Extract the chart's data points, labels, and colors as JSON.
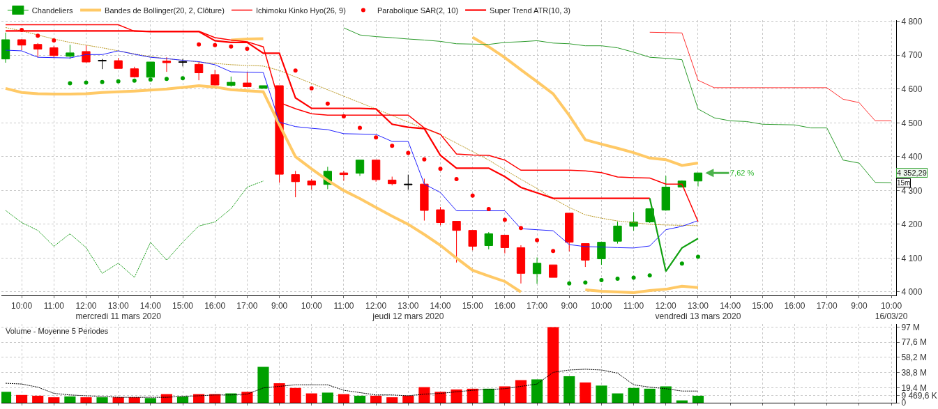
{
  "chart_data": [
    {
      "type": "candlestick",
      "categories": [
        null,
        "10:00",
        null,
        "11:00",
        null,
        "12:00",
        null,
        "13:00\nmercredi 11 mars 2020",
        null,
        "14:00",
        null,
        "15:00",
        null,
        "16:00",
        null,
        "17:00",
        null,
        "9:00",
        null,
        "10:00",
        null,
        "11:00",
        null,
        "12:00",
        null,
        "13:00\njeudi 12 mars 2020",
        null,
        "14:00",
        null,
        "15:00",
        null,
        "16:00",
        null,
        "17:00",
        null,
        "9:00",
        null,
        "10:00",
        null,
        "11:00",
        null,
        "12:00",
        null,
        "13:00\nvendredi 13 mars 2020",
        null,
        "14:00",
        null,
        "15:00",
        null,
        "16:00",
        null,
        "17:00",
        null,
        "9:00",
        null,
        "10:00\n16/03/20"
      ],
      "ylim": [
        3989,
        4804
      ],
      "yticks": [
        {
          "value": 4000,
          "label": "4 000"
        },
        {
          "value": 4100,
          "label": "4 100"
        },
        {
          "value": 4200,
          "label": "4 200"
        },
        {
          "value": 4300,
          "label": "4 300"
        },
        {
          "value": 4400,
          "label": "4 400"
        },
        {
          "value": 4500,
          "label": "4 500"
        },
        {
          "value": 4600,
          "label": "4 600"
        },
        {
          "value": 4700,
          "label": "4 700"
        },
        {
          "value": 4800,
          "label": "4 800"
        }
      ],
      "grid": true,
      "legend": "top left",
      "series": [
        {
          "name": "Chandeliers",
          "ohlc": [
            [
              4689,
              4767,
              4678,
              4746
            ],
            [
              4746,
              4748,
              4715,
              4730
            ],
            [
              4732,
              4736,
              4694,
              4718
            ],
            [
              4722,
              4728,
              4692,
              4699
            ],
            [
              4697,
              4731,
              4689,
              4707
            ],
            [
              4711,
              4730,
              4678,
              4680
            ],
            [
              4685,
              4689,
              4659,
              4683
            ],
            [
              4684,
              4692,
              4661,
              4661
            ],
            [
              4660,
              4666,
              4634,
              4636
            ],
            [
              4635,
              4680,
              4634,
              4680
            ],
            [
              4683,
              4694,
              4651,
              4678
            ],
            [
              4681,
              4689,
              4667,
              4679
            ],
            [
              4673,
              4681,
              4626,
              4648
            ],
            [
              4643,
              4657,
              4611,
              4612
            ],
            [
              4611,
              4637,
              4607,
              4620
            ],
            [
              4618,
              4650,
              4607,
              4607
            ],
            [
              4602,
              4610,
              4602,
              4610
            ],
            [
              4610,
              4610,
              4323,
              4348
            ],
            [
              4347,
              4358,
              4280,
              4326
            ],
            [
              4328,
              4334,
              4302,
              4316
            ],
            [
              4318,
              4370,
              4304,
              4357
            ],
            [
              4352,
              4358,
              4329,
              4347
            ],
            [
              4351,
              4390,
              4343,
              4390
            ],
            [
              4390,
              4390,
              4326,
              4332
            ],
            [
              4331,
              4341,
              4315,
              4320
            ],
            [
              4319,
              4347,
              4302,
              4317
            ],
            [
              4319,
              4335,
              4211,
              4241
            ],
            [
              4243,
              4251,
              4197,
              4205
            ],
            [
              4209,
              4209,
              4087,
              4182
            ],
            [
              4182,
              4182,
              4123,
              4135
            ],
            [
              4137,
              4177,
              4126,
              4172
            ],
            [
              4168,
              4168,
              4114,
              4131
            ],
            [
              4131,
              4138,
              4025,
              4055
            ],
            [
              4054,
              4102,
              4024,
              4085
            ],
            [
              4080,
              4080,
              4043,
              4043
            ],
            [
              4233,
              4233,
              4120,
              4147
            ],
            [
              4143,
              4143,
              4074,
              4094
            ],
            [
              4098,
              4149,
              4080,
              4147
            ],
            [
              4150,
              4208,
              4143,
              4195
            ],
            [
              4194,
              4236,
              4181,
              4207
            ],
            [
              4207,
              4246,
              4204,
              4246
            ],
            [
              4242,
              4343,
              4240,
              4310
            ],
            [
              4310,
              4330,
              4310,
              4328
            ],
            [
              4328,
              4352,
              4312,
              4352
            ],
            null,
            null,
            null,
            null,
            null,
            null,
            null,
            null,
            null,
            null,
            null,
            null
          ],
          "colors": [
            "#00a000",
            "#ff0000",
            "#ff0000",
            "#ff0000",
            "#00a000",
            "#ff0000",
            "#000000",
            "#ff0000",
            "#ff0000",
            "#00a000",
            "#ff0000",
            "#000000",
            "#ff0000",
            "#ff0000",
            "#00a000",
            "#ff0000",
            "#00a000",
            "#ff0000",
            "#ff0000",
            "#ff0000",
            "#00a000",
            "#ff0000",
            "#00a000",
            "#ff0000",
            "#ff0000",
            "#000000",
            "#ff0000",
            "#ff0000",
            "#ff0000",
            "#ff0000",
            "#00a000",
            "#ff0000",
            "#ff0000",
            "#00a000",
            "#ff0000",
            "#ff0000",
            "#ff0000",
            "#00a000",
            "#00a000",
            "#00a000",
            "#00a000",
            "#00a000",
            "#00a000",
            "#00a000",
            null,
            null,
            null,
            null,
            null,
            null,
            null,
            null,
            null,
            null,
            null,
            null
          ]
        },
        {
          "type": "line",
          "name": "Bandes de Bollinger(20, 2, Clôture)",
          "color": "#ffc966",
          "values": [
            null,
            null,
            null,
            null,
            null,
            null,
            null,
            null,
            null,
            null,
            null,
            null,
            null,
            null,
            4745,
            4748,
            4749,
            null,
            null,
            null,
            null,
            null,
            null,
            null,
            null,
            null,
            null,
            null,
            null,
            4753,
            4725,
            4693,
            4657,
            4622,
            4586,
            4522,
            4450,
            4437,
            4425,
            4412,
            4396,
            4391,
            4374,
            4381,
            null,
            null,
            null,
            null,
            null,
            null,
            null,
            null,
            null,
            null,
            null,
            null
          ]
        },
        {
          "type": "line",
          "color": "#ffc966",
          "values": [
            4602,
            4590,
            4586,
            4585,
            4585,
            4586,
            4590,
            4592,
            4594,
            4597,
            4600,
            4605,
            4610,
            4606,
            4598,
            4595,
            4592,
            4495,
            4400,
            4364,
            4330,
            4300,
            4276,
            4250,
            4224,
            4200,
            4170,
            4138,
            4100,
            4064,
            4047,
            4031,
            4000,
            null,
            null,
            null,
            4006,
            4002,
            4000,
            3998,
            4004,
            4008,
            4017,
            4013,
            null,
            null,
            null,
            null,
            null,
            null,
            null,
            null,
            null,
            null,
            null,
            null
          ]
        },
        {
          "type": "line",
          "color": "#b8961e",
          "line_style": "dotted",
          "values": [
            4782,
            4772,
            4760,
            4748,
            4738,
            4730,
            4722,
            4713,
            4704,
            4696,
            4690,
            4685,
            4680,
            4676,
            4672,
            4670,
            4668,
            4655,
            4636,
            4617,
            4598,
            4579,
            4560,
            4541,
            4522,
            4502,
            4483,
            4465,
            4440,
            4415,
            4390,
            4361,
            4333,
            4306,
            4276,
            4250,
            4228,
            4218,
            4210,
            4205,
            4200,
            4198,
            4197,
            4196,
            null,
            null,
            null,
            null,
            null,
            null,
            null,
            null,
            null,
            null,
            null,
            null
          ]
        },
        {
          "type": "line",
          "color": "#2020ff",
          "values": [
            4715,
            4713,
            4694,
            4693,
            4692,
            4702,
            4702,
            4713,
            4703,
            4694,
            4690,
            4685,
            4681,
            4672,
            4651,
            4650,
            4649,
            4502,
            4489,
            4484,
            4480,
            4468,
            4467,
            4466,
            4445,
            4445,
            4319,
            4294,
            4240,
            4240,
            4240,
            4240,
            4187,
            4184,
            4181,
            4140,
            4134,
            4133,
            4131,
            4130,
            4136,
            4184,
            4194,
            4211,
            null,
            null,
            null,
            null,
            null,
            null,
            null,
            null,
            null,
            null,
            null,
            null
          ]
        },
        {
          "type": "line",
          "name": "Ichimoku Kinko Hyo(26, 9)",
          "color": "#ff0000",
          "values": [
            4790,
            4790,
            4790,
            4790,
            4790,
            4790,
            4790,
            4790,
            4771,
            4771,
            4771,
            4771,
            4771,
            4752,
            4745,
            4740,
            4725,
            4560,
            4542,
            4527,
            4523,
            4523,
            4523,
            4523,
            4523,
            4523,
            4485,
            4466,
            4408,
            4405,
            4404,
            4390,
            4360,
            4360,
            4360,
            4360,
            4358,
            4353,
            4340,
            4338,
            4337,
            4319,
            4319,
            4208,
            null,
            null,
            null,
            null,
            null,
            null,
            null,
            null,
            null,
            null,
            null,
            null
          ]
        },
        {
          "type": "line",
          "color": "#ff3030",
          "values": [
            null,
            null,
            null,
            null,
            null,
            null,
            null,
            null,
            null,
            null,
            null,
            null,
            null,
            null,
            null,
            null,
            null,
            null,
            null,
            null,
            null,
            null,
            null,
            null,
            null,
            null,
            null,
            null,
            null,
            null,
            null,
            null,
            null,
            null,
            null,
            null,
            null,
            null,
            null,
            null,
            4768,
            4767,
            4766,
            4626,
            4604,
            4604,
            4604,
            4604,
            4604,
            4604,
            4604,
            4604,
            4570,
            4560,
            4506,
            4506
          ]
        },
        {
          "type": "line",
          "color": "#2a9a2a",
          "values": [
            null,
            null,
            null,
            null,
            null,
            null,
            null,
            null,
            null,
            null,
            null,
            null,
            null,
            null,
            null,
            null,
            null,
            null,
            null,
            null,
            null,
            4781,
            4760,
            4755,
            4752,
            4748,
            4745,
            4741,
            4734,
            4733,
            4732,
            4738,
            4740,
            4743,
            4736,
            4734,
            4728,
            4728,
            4722,
            4709,
            4694,
            4691,
            4687,
            4541,
            4515,
            4506,
            4504,
            4496,
            4495,
            4494,
            4485,
            4485,
            4390,
            4381,
            4324,
            4323
          ]
        },
        {
          "type": "line",
          "color": "#1a9e1a",
          "line_style": "dotted",
          "values": [
            4241,
            4205,
            4182,
            4135,
            4172,
            4131,
            4055,
            4085,
            4043,
            4147,
            4094,
            4147,
            4195,
            4207,
            4246,
            4310,
            4328,
            null,
            null,
            null,
            null,
            null,
            null,
            null,
            null,
            null,
            null,
            null,
            null,
            null,
            null,
            null,
            null,
            null,
            null,
            null,
            null,
            null,
            null,
            null,
            null,
            null,
            null,
            null,
            null,
            null,
            null,
            null,
            null,
            null,
            null,
            null,
            null,
            null,
            null,
            null
          ]
        },
        {
          "type": "scatter",
          "name": "Parabolique SAR(2, 10)",
          "values": [
            null,
            4775,
            4758,
            4744,
            4617,
            4619,
            4621,
            4623,
            4625,
            4628,
            4630,
            4632,
            4732,
            4730,
            4726,
            4719,
            null,
            null,
            4655,
            4602,
            4557,
            4519,
            4485,
            4457,
            4432,
            4411,
            4392,
            4364,
            4334,
            4285,
            4245,
            4213,
            4189,
            4153,
            4121,
            4025,
            4028,
            4035,
            4039,
            4042,
            4049,
            null,
            4084,
            4104,
            null,
            null,
            null,
            null,
            null,
            null,
            null,
            null,
            null,
            null,
            null,
            null
          ],
          "colors": [
            "#ff0000",
            "#ff0000",
            "#ff0000",
            "#ff0000",
            "#00a000",
            "#00a000",
            "#00a000",
            "#00a000",
            "#00a000",
            "#00a000",
            "#00a000",
            "#00a000",
            "#ff0000",
            "#ff0000",
            "#ff0000",
            "#ff0000",
            "#ff0000",
            "#ff0000",
            "#ff0000",
            "#ff0000",
            "#ff0000",
            "#ff0000",
            "#ff0000",
            "#ff0000",
            "#ff0000",
            "#ff0000",
            "#ff0000",
            "#ff0000",
            "#ff0000",
            "#ff0000",
            "#ff0000",
            "#ff0000",
            "#ff0000",
            "#ff0000",
            "#ff0000",
            "#00a000",
            "#00a000",
            "#00a000",
            "#00a000",
            "#00a000",
            "#00a000",
            "#00a000",
            "#00a000",
            "#00a000",
            null,
            null,
            null,
            null,
            null,
            null,
            null,
            null,
            null,
            null,
            null,
            null
          ]
        },
        {
          "type": "line",
          "name": "Super Trend ATR(10, 3)",
          "color": "#ff0000",
          "values": [
            4772,
            4772,
            4772,
            4772,
            4772,
            4772,
            4772,
            4772,
            4772,
            4770,
            4770,
            4770,
            4770,
            4743,
            4738,
            4738,
            4706,
            4706,
            4574,
            4543,
            4543,
            4543,
            4543,
            4541,
            4496,
            4487,
            4483,
            4404,
            4366,
            4366,
            4366,
            4341,
            4309,
            4293,
            4277,
            4277,
            4277,
            4277,
            4277,
            4277,
            4277,
            null,
            null,
            null,
            null,
            null,
            null,
            null,
            null,
            null,
            null,
            null,
            null,
            null,
            null,
            null
          ]
        },
        {
          "type": "line",
          "color": "#10a010",
          "values": [
            null,
            null,
            null,
            null,
            null,
            null,
            null,
            null,
            null,
            null,
            null,
            null,
            null,
            null,
            null,
            null,
            null,
            null,
            null,
            null,
            null,
            null,
            null,
            null,
            null,
            null,
            null,
            null,
            null,
            null,
            null,
            null,
            null,
            null,
            null,
            null,
            null,
            null,
            null,
            null,
            4277,
            4061,
            4130,
            4158,
            null,
            null,
            null,
            null,
            null,
            null,
            null,
            null,
            null,
            null,
            null,
            null
          ]
        }
      ],
      "annotations": [
        "7,62 %",
        "4 352,29",
        "15m"
      ]
    },
    {
      "type": "bar",
      "title": "Volume - Moyenne 5 Periodes",
      "categories": [
        null,
        null,
        null,
        null,
        null,
        null,
        null,
        null,
        null,
        null,
        null,
        null,
        null,
        null,
        null,
        null,
        null,
        null,
        null,
        null,
        null,
        null,
        null,
        null,
        null,
        null,
        null,
        null,
        null,
        null,
        null,
        null,
        null,
        null,
        null,
        null,
        null,
        null,
        null,
        null,
        null,
        null,
        null,
        null,
        null,
        null,
        null,
        null,
        null,
        null,
        null,
        null,
        null,
        null,
        null,
        null
      ],
      "tick_labels": "y",
      "ylim": [
        0,
        101
      ],
      "yticks": [
        0,
        {
          "value": 9.4696,
          "label": "9 469,6 K"
        },
        {
          "value": 19.4,
          "label": "19,4 M"
        },
        {
          "value": 38.8,
          "label": "38,8 M"
        },
        {
          "value": 58.2,
          "label": "58,2 M"
        },
        {
          "value": 77.6,
          "label": "77,6 M"
        },
        {
          "value": 97,
          "label": "97 M"
        }
      ],
      "grid": true,
      "series": [
        {
          "values": [
            14,
            10,
            9,
            7,
            8,
            7,
            7,
            7,
            7,
            6,
            11,
            8,
            11,
            11,
            12,
            14,
            46,
            25,
            19,
            12,
            13,
            11,
            9,
            9,
            7,
            9,
            20,
            14,
            17,
            18,
            18,
            21,
            29,
            30,
            97,
            34,
            26,
            22,
            12,
            19,
            18,
            21,
            3,
            9,
            null,
            null,
            null,
            null,
            null,
            null,
            null,
            null,
            null,
            null,
            null,
            null
          ],
          "colors": [
            "#00a000",
            "#ff0000",
            "#ff0000",
            "#ff0000",
            "#00a000",
            "#ff0000",
            "#00a000",
            "#ff0000",
            "#ff0000",
            "#00a000",
            "#ff0000",
            "#00a000",
            "#ff0000",
            "#ff0000",
            "#00a000",
            "#ff0000",
            "#00a000",
            "#ff0000",
            "#ff0000",
            "#ff0000",
            "#00a000",
            "#ff0000",
            "#00a000",
            "#ff0000",
            "#ff0000",
            "#ff0000",
            "#ff0000",
            "#ff0000",
            "#ff0000",
            "#ff0000",
            "#00a000",
            "#ff0000",
            "#ff0000",
            "#00a000",
            "#ff0000",
            "#00a000",
            "#ff0000",
            "#00a000",
            "#00a000",
            "#00a000",
            "#00a000",
            "#00a000",
            "#00a000",
            "#00a000",
            null,
            null,
            null,
            null,
            null,
            null,
            null,
            null,
            null,
            null,
            null,
            null
          ]
        },
        {
          "type": "line",
          "color": "#000000",
          "line_style": "dotted",
          "values": [
            25,
            24,
            20,
            12,
            10,
            9,
            8,
            7,
            7,
            7,
            7,
            8,
            9,
            10,
            10,
            11,
            19,
            21,
            23,
            23,
            23,
            16,
            13,
            10,
            10,
            9,
            11,
            12,
            14,
            16,
            17,
            18,
            21,
            24,
            39,
            42,
            43,
            42,
            38,
            23,
            20,
            18,
            15,
            15,
            null,
            null,
            null,
            null,
            null,
            null,
            null,
            null,
            null,
            null,
            null,
            null
          ]
        }
      ]
    }
  ]
}
